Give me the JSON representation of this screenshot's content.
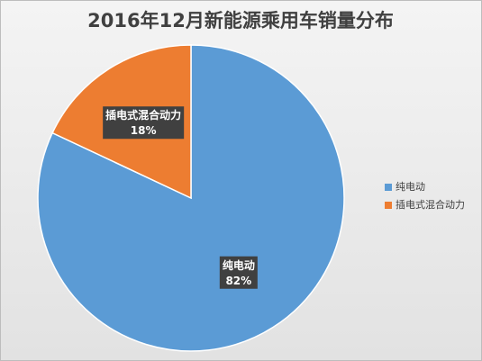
{
  "chart_data": {
    "type": "pie",
    "title": "2016年12月新能源乘用车销量分布",
    "categories": [
      "纯电动",
      "插电式混合动力"
    ],
    "values": [
      82,
      18
    ],
    "value_labels": [
      "82%",
      "18%"
    ],
    "colors": [
      "#5b9bd5",
      "#ed7d31"
    ],
    "legend": "right"
  }
}
